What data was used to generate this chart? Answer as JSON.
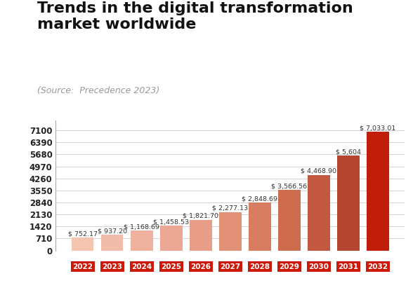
{
  "title_line1": "Trends in the digital transformation",
  "title_line2": "market worldwide",
  "subtitle": "(Source:  Precedence 2023)",
  "years": [
    "2022",
    "2023",
    "2024",
    "2025",
    "2026",
    "2027",
    "2028",
    "2029",
    "2030",
    "2031",
    "2032"
  ],
  "values": [
    752.17,
    937.2,
    1168.69,
    1458.53,
    1821.7,
    2277.13,
    2848.69,
    3566.56,
    4468.9,
    5604,
    7033.01
  ],
  "labels": [
    "$ 752.17",
    "$ 937.20",
    "$ 1,168.69",
    "$ 1,458.53",
    "$ 1,821.70",
    "$ 2,277.13",
    "$ 2,848.69",
    "$ 3,566.56",
    "$ 4,468.90",
    "$ 5,604",
    "$ 7,033.01"
  ],
  "bar_colors": [
    "#f5c5b2",
    "#f2bcaa",
    "#efb29f",
    "#eca894",
    "#e89d88",
    "#e28f78",
    "#d97d62",
    "#ce6c50",
    "#c25840",
    "#b44530",
    "#c01e0a"
  ],
  "yticks": [
    0,
    710,
    1420,
    2130,
    2840,
    3550,
    4260,
    4970,
    5680,
    6390,
    7100
  ],
  "ylim": [
    0,
    7700
  ],
  "background_color": "#ffffff",
  "bar_label_fontsize": 6.8,
  "title_fontsize": 16,
  "subtitle_fontsize": 9.0,
  "ytick_fontsize": 8.5,
  "xtick_fontsize": 7.5
}
